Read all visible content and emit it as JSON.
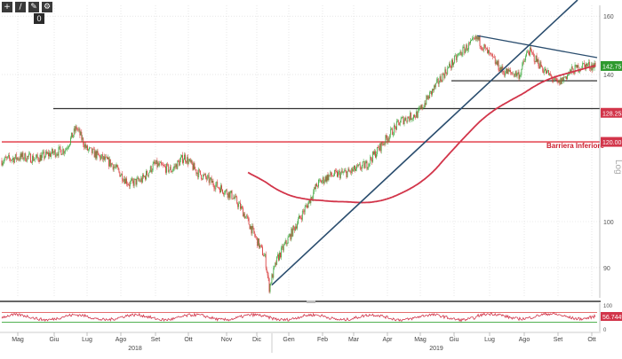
{
  "toolbar": {
    "buttons": [
      {
        "icon": "crosshair-icon",
        "glyph": "+"
      },
      {
        "icon": "draw-icon",
        "glyph": "/"
      },
      {
        "icon": "pencil-icon",
        "glyph": "✎"
      },
      {
        "icon": "settings-icon",
        "glyph": "⚙"
      }
    ],
    "counter": "0"
  },
  "chart_data": {
    "type": "candlestick",
    "scale": "log",
    "price_axis": {
      "ticks": [
        "160",
        "140",
        "120.00",
        "100",
        "90"
      ],
      "tick_values": [
        160,
        140,
        120,
        100,
        90
      ],
      "range": [
        84,
        164
      ]
    },
    "months": [
      "Mag",
      "Giu",
      "Lug",
      "Ago",
      "Set",
      "Ott",
      "Nov",
      "Dic",
      "Gen",
      "Feb",
      "Mar",
      "Apr",
      "Mag",
      "Giu",
      "Lug",
      "Ago",
      "Set",
      "Ott"
    ],
    "years": [
      "2018",
      "2019"
    ],
    "right_side_label": "Log",
    "badges": [
      {
        "text": "142.75",
        "value": 142.75,
        "color": "#2e9a2e"
      },
      {
        "text": "128.2531",
        "value": 128.2531,
        "color": "#d2354a"
      },
      {
        "text": "120.00",
        "value": 120.0,
        "color": "#d2354a"
      }
    ],
    "annotation": {
      "text": "Barriera Inferiore",
      "color": "#cc1f2f"
    },
    "horizontal_lines": [
      {
        "name": "barrier",
        "value": 120.0,
        "color": "#e0303d"
      },
      {
        "name": "resistance",
        "value": 129.5,
        "color": "#333333"
      },
      {
        "name": "support",
        "value": 138.0,
        "color": "#333333"
      }
    ],
    "moving_average": {
      "color": "#d2354a"
    },
    "trend_lines": {
      "color": "#2a4d6e"
    },
    "oscillator": {
      "ticks": [
        "100",
        "0"
      ],
      "badge": "56.7449",
      "levels": [
        70,
        30
      ]
    }
  }
}
